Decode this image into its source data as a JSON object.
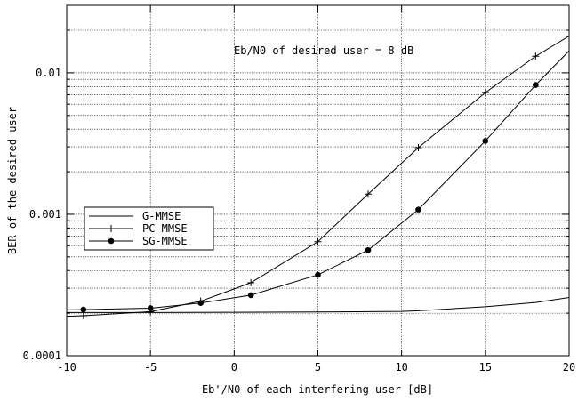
{
  "chart_data": {
    "type": "line",
    "xlabel": "Eb'/N0 of each interfering user [dB]",
    "ylabel": "BER of the desired user",
    "xlim": [
      -10,
      20
    ],
    "ylim": [
      0.0001,
      0.03
    ],
    "yscale": "log",
    "grid": true,
    "legend_position": "left",
    "x_ticks": [
      -10,
      -5,
      0,
      5,
      10,
      15,
      20
    ],
    "x_tick_labels": [
      "-10",
      "-5",
      "0",
      "5",
      "10",
      "15",
      "20"
    ],
    "y_ticks": [
      0.0001,
      0.001,
      0.01
    ],
    "y_tick_labels": [
      "0.0001",
      "0.001",
      "0.01"
    ],
    "annotation": "Eb/N0 of desired user = 8 dB",
    "series": [
      {
        "name": "G-MMSE",
        "marker": "none",
        "color": "#000000",
        "x": [
          -10,
          -5,
          0,
          5,
          10,
          11,
          15,
          18,
          20
        ],
        "y": [
          0.000202,
          0.000202,
          0.000203,
          0.000204,
          0.000206,
          0.000208,
          0.000222,
          0.000238,
          0.000258
        ]
      },
      {
        "name": "PC-MMSE",
        "marker": "plus",
        "color": "#000000",
        "x": [
          -10,
          -9,
          -5,
          -2,
          1,
          5,
          8,
          11,
          15,
          18,
          20
        ],
        "y": [
          0.00019,
          0.000192,
          0.000205,
          0.000243,
          0.000328,
          0.00064,
          0.00139,
          0.00296,
          0.00725,
          0.0131,
          0.0182
        ],
        "marker_x": [
          -9,
          -5,
          -2,
          1,
          5,
          8,
          11,
          15,
          18
        ],
        "marker_y": [
          0.000192,
          0.000205,
          0.000243,
          0.000328,
          0.00064,
          0.00139,
          0.00296,
          0.00725,
          0.0131
        ]
      },
      {
        "name": "SG-MMSE",
        "marker": "circle",
        "color": "#000000",
        "x": [
          -10,
          -9,
          -5,
          -2,
          1,
          5,
          8,
          11,
          15,
          18,
          20
        ],
        "y": [
          0.000211,
          0.000212,
          0.000217,
          0.000236,
          0.000268,
          0.000373,
          0.000558,
          0.00108,
          0.0033,
          0.0082,
          0.0143
        ],
        "marker_x": [
          -9,
          -5,
          -2,
          1,
          5,
          8,
          11,
          15,
          18
        ],
        "marker_y": [
          0.000212,
          0.000217,
          0.000236,
          0.000268,
          0.000373,
          0.000558,
          0.00108,
          0.0033,
          0.0082
        ]
      }
    ]
  }
}
